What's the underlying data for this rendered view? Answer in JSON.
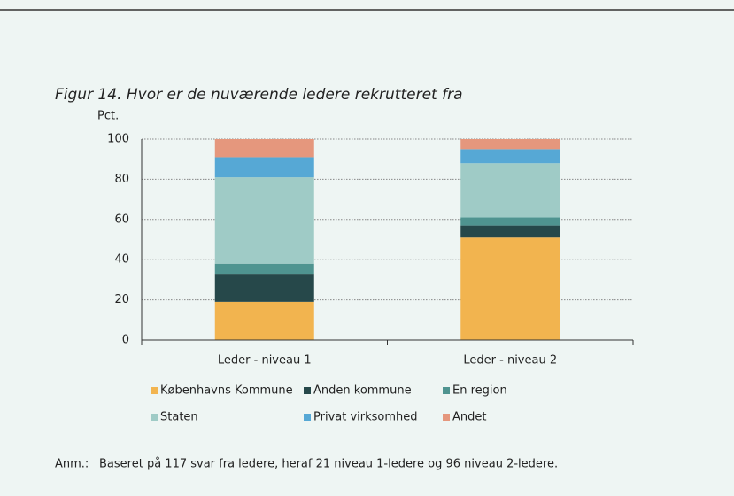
{
  "chart_data": {
    "type": "stacked_bar",
    "title": "Figur 14. Hvor er de nuværende ledere rekrutteret fra",
    "y_label": "Pct.",
    "categories": [
      "Leder - niveau 1",
      "Leder - niveau 2"
    ],
    "series": [
      {
        "name": "Københavns Kommune",
        "color": "#f2b44f",
        "values": [
          19,
          51
        ]
      },
      {
        "name": "Anden kommune",
        "color": "#26484a",
        "values": [
          14,
          6
        ]
      },
      {
        "name": "En region",
        "color": "#4f9490",
        "values": [
          5,
          4
        ]
      },
      {
        "name": "Staten",
        "color": "#9fcbc6",
        "values": [
          43,
          27
        ]
      },
      {
        "name": "Privat virksomhed",
        "color": "#56a8d5",
        "values": [
          10,
          7
        ]
      },
      {
        "name": "Andet",
        "color": "#e5977d",
        "values": [
          9,
          5
        ]
      }
    ],
    "ylim": [
      0,
      100
    ],
    "yticks": [
      0,
      20,
      40,
      60,
      80,
      100
    ],
    "grid": true,
    "note_label": "Anm.:",
    "note": "Baseret på 117 svar fra ledere, heraf 21 niveau 1-ledere og 96 niveau 2-ledere."
  }
}
